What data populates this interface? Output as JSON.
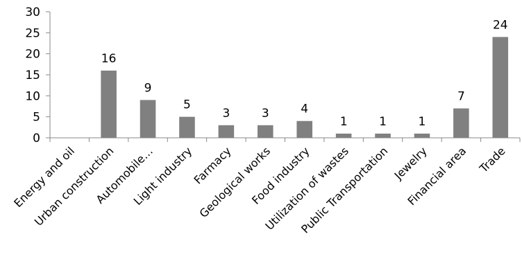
{
  "chart_data": {
    "type": "bar",
    "title": "",
    "xlabel": "",
    "ylabel": "",
    "categories": [
      "Energy and oil",
      "Urban construction",
      "Automobile…",
      "Light industry",
      "Farmacy",
      "Geological works",
      "Food industry",
      "Utilization of wastes",
      "Public Transportation",
      "Jewelry",
      "Financial area",
      "Trade"
    ],
    "values": [
      0,
      16,
      9,
      5,
      3,
      3,
      4,
      1,
      1,
      1,
      7,
      24
    ],
    "data_labels": [
      "",
      "16",
      "9",
      "5",
      "3",
      "3",
      "4",
      "1",
      "1",
      "1",
      "7",
      "24"
    ],
    "ylim": [
      0,
      30
    ],
    "yticks": [
      "0",
      "5",
      "10",
      "15",
      "20",
      "25",
      "30"
    ],
    "grid": false,
    "legend": "none",
    "bar_color": "#808080"
  }
}
